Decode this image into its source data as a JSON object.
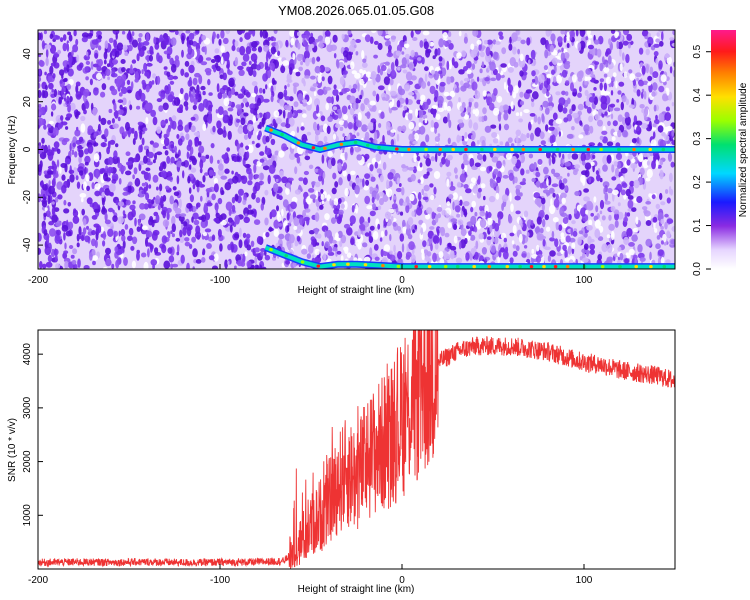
{
  "title": "YM08.2026.065.01.05.G08",
  "colors": {
    "snr_line": "#ee3333",
    "spectrogram_background": "#e4d4fb",
    "spectrogram_noise": "#6a1fe0",
    "axis": "#000000"
  },
  "chart_data": [
    {
      "type": "heatmap",
      "title": "YM08.2026.065.01.05.G08",
      "xlabel": "Height of straight line (km)",
      "ylabel": "Frequency (Hz)",
      "xlim": [
        -200,
        150
      ],
      "ylim": [
        -50,
        50
      ],
      "x_ticks": [
        -200,
        -100,
        0,
        100
      ],
      "x_tick_labels": [
        "-200",
        "-100",
        "0",
        "100"
      ],
      "y_ticks": [
        40,
        20,
        0,
        -20,
        -40
      ],
      "y_tick_labels": [
        "40",
        "20",
        "0",
        "-20",
        "-40"
      ],
      "colorbar": {
        "label": "Normalized spectral amplitude",
        "range": [
          0.0,
          0.55
        ],
        "ticks": [
          0.0,
          0.1,
          0.2,
          0.3,
          0.4,
          0.5
        ],
        "tick_labels": [
          "0.0",
          "0.1",
          "0.2",
          "0.3",
          "0.4",
          "0.5"
        ],
        "colormap": [
          "violet",
          "blue",
          "cyan",
          "green",
          "yellow",
          "orange",
          "red",
          "magenta"
        ]
      },
      "description_series": [
        {
          "name": "main signal ridge",
          "x": [
            -75,
            -65,
            -55,
            -45,
            -35,
            -25,
            -15,
            0,
            150
          ],
          "freq_hz": [
            9,
            6,
            2,
            0,
            2,
            3,
            1,
            0,
            0
          ]
        },
        {
          "name": "aliased ridge",
          "x": [
            -75,
            -65,
            -55,
            -45,
            -35,
            -25,
            0,
            150
          ],
          "freq_hz": [
            -41,
            -44,
            -47,
            -49,
            -48,
            -48,
            -49,
            -49
          ]
        }
      ]
    },
    {
      "type": "line",
      "xlabel": "Height of straight line (km)",
      "ylabel": "SNR (10 * v/v)",
      "xlim": [
        -200,
        150
      ],
      "ylim": [
        0,
        4450
      ],
      "x_ticks": [
        -200,
        -100,
        0,
        100
      ],
      "x_tick_labels": [
        "-200",
        "-100",
        "0",
        "100"
      ],
      "y_ticks": [
        1000,
        2000,
        3000,
        4000
      ],
      "y_tick_labels": [
        "1000",
        "2000",
        "3000",
        "4000"
      ],
      "series": [
        {
          "name": "SNR",
          "x": [
            -200,
            -180,
            -160,
            -140,
            -120,
            -100,
            -80,
            -65,
            -60,
            -55,
            -50,
            -45,
            -40,
            -35,
            -30,
            -25,
            -20,
            -15,
            -10,
            -5,
            0,
            5,
            10,
            15,
            20,
            25,
            30,
            40,
            50,
            60,
            70,
            80,
            90,
            100,
            110,
            120,
            130,
            140,
            150
          ],
          "y": [
            120,
            130,
            125,
            130,
            120,
            125,
            130,
            150,
            300,
            550,
            800,
            1000,
            1250,
            1600,
            1800,
            1700,
            2000,
            2200,
            2350,
            2550,
            2800,
            3100,
            3400,
            3650,
            3850,
            3950,
            4050,
            4150,
            4150,
            4150,
            4100,
            4050,
            3950,
            3850,
            3800,
            3700,
            3650,
            3600,
            3500
          ]
        }
      ]
    }
  ]
}
